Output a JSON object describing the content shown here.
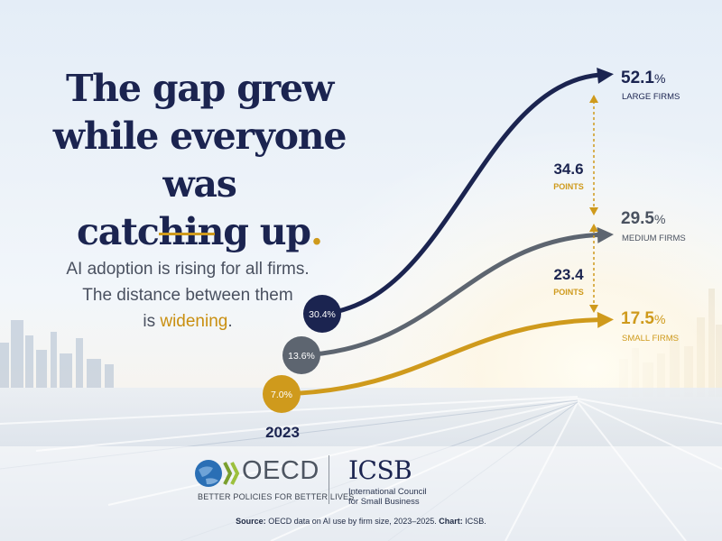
{
  "headline": {
    "line1": "The gap grew",
    "line2": "while everyone was",
    "line3": "catching up",
    "line3_end": "."
  },
  "subtitle": {
    "line1": "AI adoption is rising for all firms.",
    "line2": "The distance between them",
    "line3_a": "is ",
    "line3_hl": "widening",
    "line3_end": "."
  },
  "colors": {
    "large": "#1b2450",
    "medium": "#5d6570",
    "small": "#cf9a1c",
    "headline": "#1b2450",
    "accent": "#cf9a1c"
  },
  "chart_data": {
    "type": "line",
    "x": [
      "2023",
      "2025"
    ],
    "x_label_shown": "2023",
    "series": [
      {
        "name": "LARGE FIRMS",
        "start_label": "30.4%",
        "end_value": "52.1",
        "values": [
          30.4,
          52.1
        ]
      },
      {
        "name": "MEDIUM FIRMS",
        "start_label": "13.6%",
        "end_value": "29.5",
        "values": [
          13.6,
          29.5
        ]
      },
      {
        "name": "SMALL FIRMS",
        "start_label": "7.0%",
        "end_value": "17.5",
        "values": [
          7.0,
          17.5
        ]
      }
    ],
    "gaps": [
      {
        "value": "34.6",
        "unit": "POINTS"
      },
      {
        "value": "23.4",
        "unit": "POINTS"
      }
    ],
    "percent_sign": "%"
  },
  "brand": {
    "oecd_name": "OECD",
    "oecd_tagline": "BETTER POLICIES FOR BETTER LIVES",
    "icsb_name": "ICSB",
    "icsb_line1": "International Council",
    "icsb_line2": "for Small Business"
  },
  "source": {
    "label": "Source:",
    "text": " OECD data on AI use by firm size, 2023–2025. ",
    "chart_label": "Chart:",
    "chart_text": " ICSB."
  }
}
